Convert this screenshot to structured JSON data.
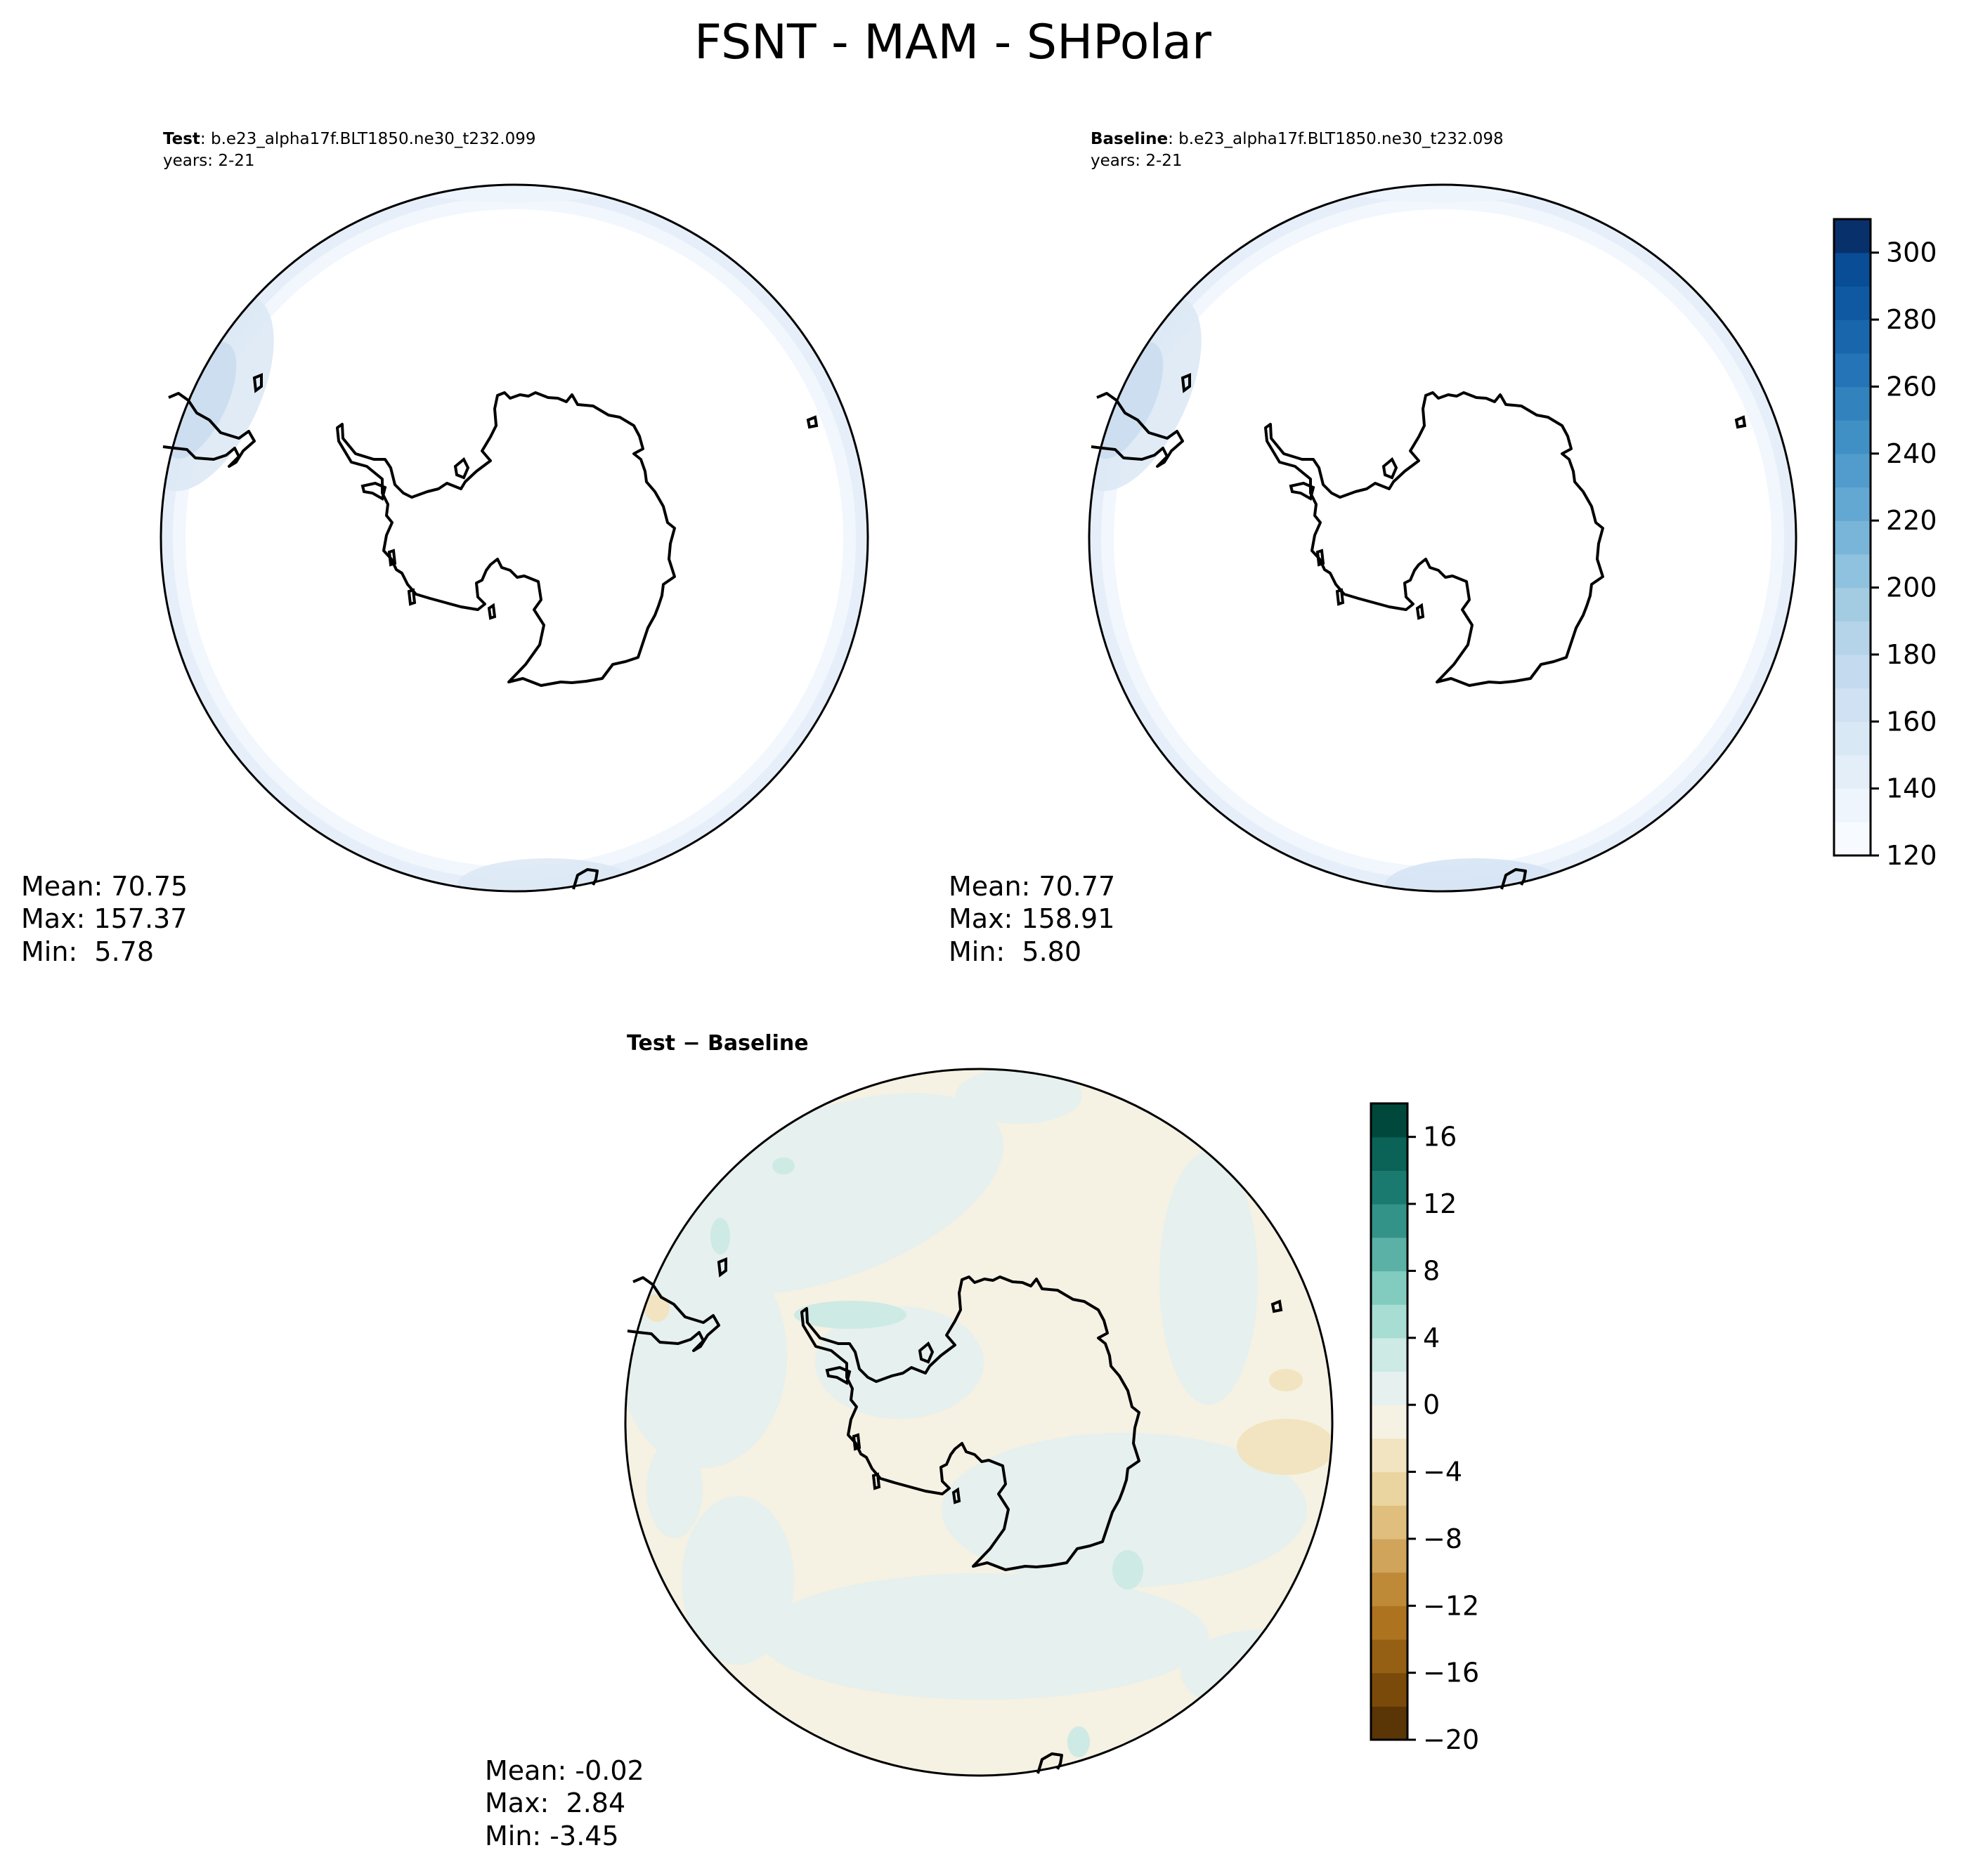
{
  "figure": {
    "title": "FSNT - MAM - SHPolar"
  },
  "panels": [
    {
      "id": "test",
      "label_bold": "Test",
      "label_rest": ": b.e23_alpha17f.BLT1850.ne30_t232.099",
      "years": "years: 2-21",
      "stats": [
        "Mean: 70.75",
        "Max: 157.37",
        "Min:  5.78"
      ]
    },
    {
      "id": "baseline",
      "label_bold": "Baseline",
      "label_rest": ": b.e23_alpha17f.BLT1850.ne30_t232.098",
      "years": "years: 2-21",
      "stats": [
        "Mean: 70.77",
        "Max: 158.91",
        "Min:  5.80"
      ]
    },
    {
      "id": "difference",
      "label_bold": "Test − Baseline",
      "stats": [
        "Mean: -0.02",
        "Max:  2.84",
        "Min: -3.45"
      ]
    }
  ],
  "colorbars": [
    {
      "id": "absolute",
      "colormap": "Blues",
      "range": [
        120,
        310
      ],
      "levels": 19,
      "ticks": [
        120,
        140,
        160,
        180,
        200,
        220,
        240,
        260,
        280,
        300
      ],
      "tick_labels": [
        "120",
        "140",
        "160",
        "180",
        "200",
        "220",
        "240",
        "260",
        "280",
        "300"
      ],
      "colors": [
        "#f7fbff",
        "#eef5fc",
        "#e3eef9",
        "#d9e8f5",
        "#cfe1f2",
        "#c4daee",
        "#b5d4e9",
        "#a3cce3",
        "#8fc2de",
        "#79b5d9",
        "#63a8d3",
        "#519ccc",
        "#4190c5",
        "#3282be",
        "#2474b7",
        "#1966ad",
        "#0f59a3",
        "#084d96",
        "#08306b"
      ]
    },
    {
      "id": "difference",
      "colormap": "BrBG",
      "range": [
        -20,
        18
      ],
      "levels": 19,
      "ticks": [
        -20,
        -16,
        -12,
        -8,
        -4,
        0,
        4,
        8,
        12,
        16
      ],
      "tick_labels": [
        "−20",
        "−16",
        "−12",
        "−8",
        "−4",
        "0",
        "4",
        "8",
        "12",
        "16"
      ],
      "colors": [
        "#5a3505",
        "#7a4a0a",
        "#955f14",
        "#ad731f",
        "#bf8a38",
        "#d0a45a",
        "#dfbe7e",
        "#ead49f",
        "#f2e4c0",
        "#f5f1e3",
        "#e6f0ee",
        "#cdeae5",
        "#a8ddd4",
        "#82cbbf",
        "#5bb1a6",
        "#349389",
        "#1a7a6f",
        "#0b6257",
        "#00483b"
      ]
    }
  ],
  "chart_data": [
    {
      "type": "heatmap",
      "title": "Test: b.e23_alpha17f.BLT1850.ne30_t232.099",
      "subtitle": "years: 2-21",
      "projection": "south-polar-stereographic",
      "colormap": "Blues",
      "clim": [
        120,
        310
      ],
      "summary": {
        "mean": 70.75,
        "max": 157.37,
        "min": 5.78
      }
    },
    {
      "type": "heatmap",
      "title": "Baseline: b.e23_alpha17f.BLT1850.ne30_t232.098",
      "subtitle": "years: 2-21",
      "projection": "south-polar-stereographic",
      "colormap": "Blues",
      "clim": [
        120,
        310
      ],
      "summary": {
        "mean": 70.77,
        "max": 158.91,
        "min": 5.8
      }
    },
    {
      "type": "heatmap",
      "title": "Test − Baseline",
      "projection": "south-polar-stereographic",
      "colormap": "BrBG",
      "clim": [
        -20,
        18
      ],
      "summary": {
        "mean": -0.02,
        "max": 2.84,
        "min": -3.45
      }
    }
  ]
}
